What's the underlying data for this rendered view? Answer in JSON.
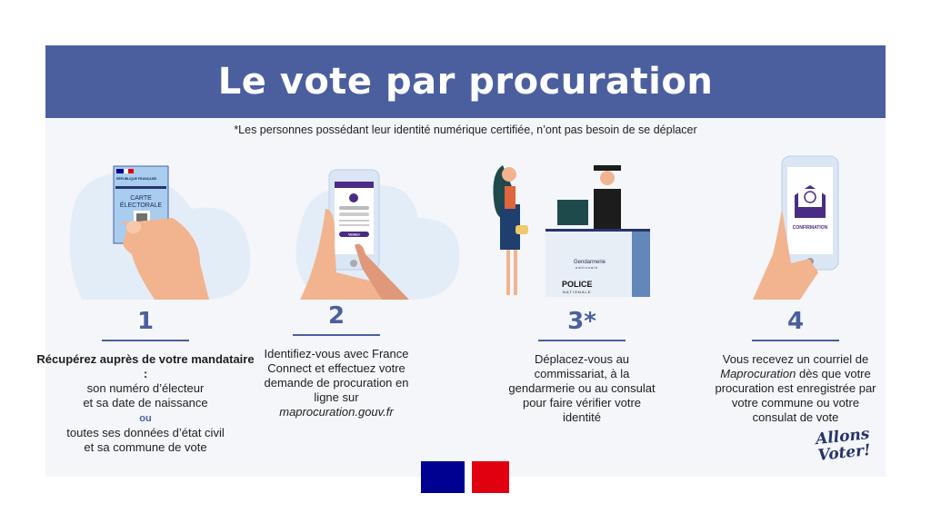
{
  "header": {
    "title": "Le vote par procuration"
  },
  "note": "*Les personnes possédant leur identité numérique certifiée, n’ont pas besoin de se déplacer",
  "steps": [
    {
      "number": "1",
      "bold": "Récupérez auprès de votre mandataire :",
      "lines": [
        "son numéro d’électeur",
        "et sa date de naissance"
      ],
      "or": "ou",
      "lines2": [
        "toutes ses données d’état civil",
        "et sa commune de vote"
      ],
      "card": {
        "republic": "RÉPUBLIQUE FRANÇAISE",
        "title1": "CARTE",
        "title2": "ÉLECTORALE"
      }
    },
    {
      "number": "2",
      "text1": "Identifiez-vous avec France Connect et effectuez votre demande de procuration en ligne sur",
      "link": "maprocuration.gouv.fr",
      "phone": {
        "button": "Valider"
      }
    },
    {
      "number": "3*",
      "text1": "Déplacez-vous au commissariat, à la gendarmerie ou au consulat pour faire vérifier votre identité",
      "desk": {
        "gendarmerie": "Gendarmerie",
        "gendarmerie_sub": "nationale",
        "police": "POLICE",
        "police_sub": "NATIONALE"
      }
    },
    {
      "number": "4",
      "text1": "Vous recevez un courriel de",
      "italic": "Maprocuration",
      "text2": "dès que votre procuration est enregistrée par votre commune ou votre consulat de vote",
      "phone": {
        "label": "CONFIRMATION"
      }
    }
  ],
  "slogan": {
    "line1": "Allons",
    "line2": "Voter!"
  },
  "colors": {
    "header": "#4b5f9e",
    "panel": "#f4f6fa",
    "blue": "#000091",
    "red": "#e1000f"
  }
}
